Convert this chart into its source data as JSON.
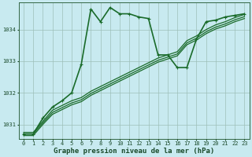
{
  "xlabel": "Graphe pression niveau de la mer (hPa)",
  "ylim": [
    1030.55,
    1034.85
  ],
  "xlim": [
    -0.5,
    23.5
  ],
  "yticks": [
    1031,
    1032,
    1033,
    1034
  ],
  "xticks": [
    0,
    1,
    2,
    3,
    4,
    5,
    6,
    7,
    8,
    9,
    10,
    11,
    12,
    13,
    14,
    15,
    16,
    17,
    18,
    19,
    20,
    21,
    22,
    23
  ],
  "bg_color": "#c8eaf0",
  "grid_color": "#9dbfb8",
  "line_color": "#1a6b2a",
  "lines": [
    {
      "x": [
        0,
        1,
        2,
        3,
        4,
        5,
        6,
        7,
        8,
        9,
        10,
        11,
        12,
        13,
        14,
        15,
        16,
        17,
        18,
        19,
        20,
        21,
        22,
        23
      ],
      "y": [
        1030.7,
        1030.7,
        1031.2,
        1031.55,
        1031.75,
        1032.0,
        1032.9,
        1034.65,
        1034.25,
        1034.7,
        1034.5,
        1034.5,
        1034.4,
        1034.35,
        1033.2,
        1033.2,
        1032.8,
        1032.8,
        1033.7,
        1034.25,
        1034.3,
        1034.4,
        1034.45,
        1034.5
      ],
      "marker": true,
      "lw": 1.2
    },
    {
      "x": [
        0,
        1,
        2,
        3,
        4,
        5,
        6,
        7,
        8,
        9,
        10,
        11,
        12,
        13,
        14,
        15,
        16,
        17,
        18,
        19,
        20,
        21,
        22,
        23
      ],
      "y": [
        1030.75,
        1030.75,
        1031.1,
        1031.45,
        1031.6,
        1031.75,
        1031.85,
        1032.05,
        1032.2,
        1032.35,
        1032.5,
        1032.65,
        1032.8,
        1032.95,
        1033.1,
        1033.2,
        1033.3,
        1033.65,
        1033.8,
        1034.0,
        1034.15,
        1034.25,
        1034.38,
        1034.48
      ],
      "marker": false,
      "lw": 0.9
    },
    {
      "x": [
        0,
        1,
        2,
        3,
        4,
        5,
        6,
        7,
        8,
        9,
        10,
        11,
        12,
        13,
        14,
        15,
        16,
        17,
        18,
        19,
        20,
        21,
        22,
        23
      ],
      "y": [
        1030.7,
        1030.7,
        1031.05,
        1031.38,
        1031.53,
        1031.68,
        1031.78,
        1031.98,
        1032.13,
        1032.28,
        1032.43,
        1032.58,
        1032.73,
        1032.88,
        1033.03,
        1033.13,
        1033.23,
        1033.58,
        1033.73,
        1033.93,
        1034.08,
        1034.18,
        1034.31,
        1034.41
      ],
      "marker": false,
      "lw": 0.9
    },
    {
      "x": [
        0,
        1,
        2,
        3,
        4,
        5,
        6,
        7,
        8,
        9,
        10,
        11,
        12,
        13,
        14,
        15,
        16,
        17,
        18,
        19,
        20,
        21,
        22,
        23
      ],
      "y": [
        1030.65,
        1030.65,
        1031.0,
        1031.32,
        1031.47,
        1031.62,
        1031.72,
        1031.92,
        1032.07,
        1032.22,
        1032.37,
        1032.52,
        1032.67,
        1032.82,
        1032.97,
        1033.07,
        1033.17,
        1033.52,
        1033.67,
        1033.87,
        1034.02,
        1034.12,
        1034.25,
        1034.35
      ],
      "marker": false,
      "lw": 0.9
    }
  ],
  "marker_style": "+",
  "marker_size": 3.5,
  "marker_lw": 0.8,
  "font_family": "monospace",
  "label_fontsize": 6.5,
  "tick_fontsize": 5.0
}
